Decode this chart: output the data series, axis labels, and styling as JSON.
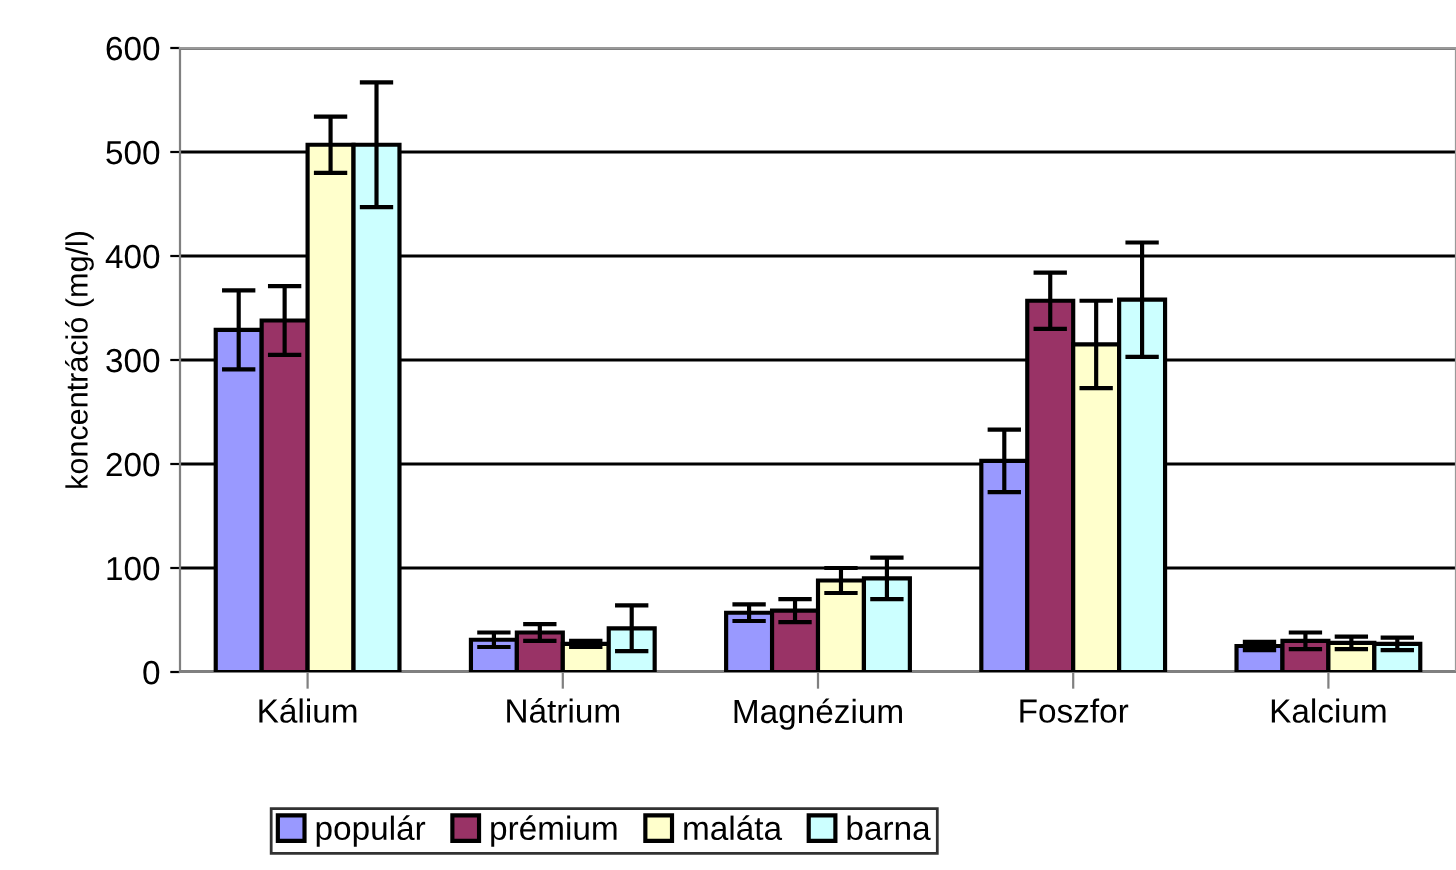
{
  "chart_data": {
    "type": "bar",
    "ylabel": "koncentráció (mg/l)",
    "categories": [
      "Kálium",
      "Nátrium",
      "Magnézium",
      "Foszfor",
      "Kalcium"
    ],
    "series": [
      {
        "name": "populár",
        "color": "#9999ff",
        "values": [
          329,
          31,
          57,
          203,
          25
        ],
        "errors": [
          38,
          7,
          8,
          30,
          4
        ]
      },
      {
        "name": "prémium",
        "color": "#993366",
        "values": [
          338,
          38,
          59,
          357,
          30
        ],
        "errors": [
          33,
          8,
          11,
          27,
          8
        ]
      },
      {
        "name": "maláta",
        "color": "#ffffcc",
        "values": [
          507,
          27,
          88,
          315,
          28
        ],
        "errors": [
          27,
          3,
          12,
          42,
          6
        ]
      },
      {
        "name": "barna",
        "color": "#ccffff",
        "values": [
          507,
          42,
          90,
          358,
          27
        ],
        "errors": [
          60,
          22,
          20,
          55,
          6
        ]
      }
    ],
    "ylim": [
      0,
      600
    ],
    "yticks": [
      0,
      100,
      200,
      300,
      400,
      500,
      600
    ],
    "grid": "y",
    "legend": "bottom"
  }
}
